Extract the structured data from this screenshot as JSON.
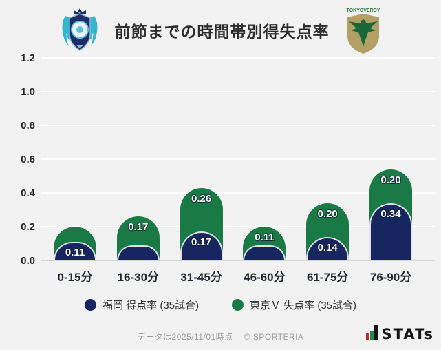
{
  "header": {
    "title": "前節までの時間帯別得失点率",
    "left_crest": "avispa-fukuoka-crest",
    "right_crest": "tokyo-verdy-crest",
    "verdy_text": "TOKYOVERDY"
  },
  "chart_data": {
    "type": "bar",
    "subtype": "stacked-rounded-top",
    "title": "前節までの時間帯別得失点率",
    "categories": [
      "0-15分",
      "16-30分",
      "31-45分",
      "46-60分",
      "61-75分",
      "76-90分"
    ],
    "series": [
      {
        "name": "福岡 得点率 (35試合)",
        "color": "#17265f",
        "values": [
          0.11,
          0.09,
          0.17,
          0.09,
          0.14,
          0.34
        ],
        "visible_labels": [
          "0.11",
          null,
          "0.17",
          null,
          "0.14",
          "0.34"
        ]
      },
      {
        "name": "東京Ｖ 失点率 (35試合)",
        "color": "#1a7a46",
        "values": [
          0.09,
          0.17,
          0.26,
          0.11,
          0.2,
          0.2
        ],
        "visible_labels": [
          null,
          "0.17",
          "0.26",
          "0.11",
          "0.20",
          "0.20"
        ]
      }
    ],
    "ylim": [
      0,
      1.2
    ],
    "ytick_step": 0.2,
    "yticks": [
      "0.0",
      "0.2",
      "0.4",
      "0.6",
      "0.8",
      "1.0",
      "1.2"
    ],
    "grid": true,
    "legend_position": "bottom"
  },
  "footer": {
    "note": "データは2025/11/01時点",
    "copyright": "© SPORTERIA",
    "logo_text": "STATs",
    "logo_colors": {
      "red": "#cc2433",
      "green": "#1f8a4c",
      "black": "#141414"
    }
  },
  "colors": {
    "background": "#f2f2f2",
    "gridline": "#ffffff",
    "baseline": "#d8d8d8",
    "navy": "#17265f",
    "green": "#1a7a46"
  }
}
